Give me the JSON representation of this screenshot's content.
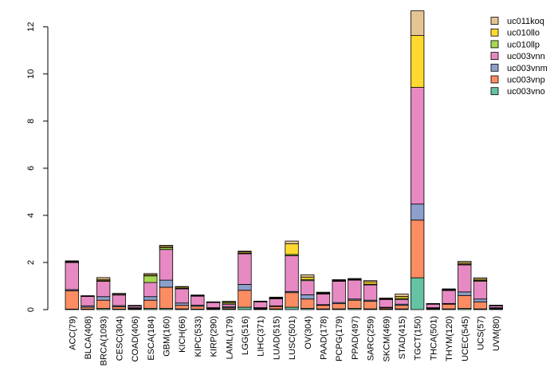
{
  "chart_data": {
    "type": "bar",
    "stacked": true,
    "title": "",
    "xlabel": "",
    "ylabel": "",
    "ylim": [
      0,
      12.7
    ],
    "yticks": [
      0,
      2,
      4,
      6,
      8,
      10,
      12
    ],
    "legend_position": "top-right",
    "categories": [
      "ACC(79)",
      "BLCA(408)",
      "BRCA(1093)",
      "CESC(304)",
      "COAD(406)",
      "ESCA(184)",
      "GBM(160)",
      "KICH(66)",
      "KIPC(533)",
      "KIRP(290)",
      "LAML(179)",
      "LGG(516)",
      "LIHC(371)",
      "LUAD(515)",
      "LUSC(501)",
      "OV(304)",
      "PAAD(178)",
      "PCPG(179)",
      "PPAD(497)",
      "SARC(259)",
      "SKCM(469)",
      "STAD(415)",
      "TGCT(150)",
      "THCA(501)",
      "THYM(120)",
      "UCEC(545)",
      "UCS(57)",
      "UVM(80)"
    ],
    "series": [
      {
        "name": "uc003vno",
        "color": "#66c2a5",
        "values": [
          0.02,
          0.02,
          0.05,
          0.02,
          0.02,
          0.05,
          0.05,
          0.03,
          0.02,
          0.02,
          0.03,
          0.1,
          0.02,
          0.03,
          0.1,
          0.05,
          0.03,
          0.03,
          0.05,
          0.03,
          0.02,
          0.03,
          1.35,
          0.02,
          0.03,
          0.05,
          0.03,
          0.02
        ]
      },
      {
        "name": "uc003vnp",
        "color": "#fc8d62",
        "values": [
          0.78,
          0.08,
          0.35,
          0.1,
          0.03,
          0.35,
          0.9,
          0.15,
          0.12,
          0.03,
          0.05,
          0.72,
          0.03,
          0.1,
          0.62,
          0.4,
          0.15,
          0.22,
          0.35,
          0.32,
          0.05,
          0.15,
          2.45,
          0.03,
          0.2,
          0.55,
          0.3,
          0.03
        ]
      },
      {
        "name": "uc003vnm",
        "color": "#8da0cb",
        "values": [
          0.05,
          0.06,
          0.15,
          0.05,
          0.03,
          0.15,
          0.3,
          0.1,
          0.05,
          0.03,
          0.05,
          0.25,
          0.03,
          0.03,
          0.05,
          0.18,
          0.03,
          0.05,
          0.05,
          0.05,
          0.03,
          0.05,
          0.68,
          0.03,
          0.03,
          0.15,
          0.12,
          0.03
        ]
      },
      {
        "name": "uc003vnn",
        "color": "#e78ac3",
        "values": [
          1.15,
          0.4,
          0.65,
          0.45,
          0.07,
          0.6,
          1.3,
          0.6,
          0.38,
          0.22,
          0.1,
          1.3,
          0.25,
          0.3,
          1.52,
          0.6,
          0.45,
          0.9,
          0.8,
          0.65,
          0.33,
          0.2,
          4.95,
          0.15,
          0.55,
          1.15,
          0.75,
          0.08
        ]
      },
      {
        "name": "uc010llp",
        "color": "#a6d854",
        "values": [
          0.02,
          0.01,
          0.03,
          0.01,
          0.01,
          0.28,
          0.08,
          0.02,
          0.01,
          0.01,
          0.05,
          0.03,
          0.01,
          0.02,
          0.05,
          0.05,
          0.02,
          0.02,
          0.02,
          0.03,
          0.01,
          0.05,
          0.0,
          0.01,
          0.02,
          0.03,
          0.04,
          0.01
        ]
      },
      {
        "name": "uc010llo",
        "color": "#ffd92f",
        "values": [
          0.02,
          0.01,
          0.05,
          0.02,
          0.01,
          0.05,
          0.05,
          0.05,
          0.02,
          0.01,
          0.05,
          0.05,
          0.01,
          0.02,
          0.45,
          0.1,
          0.03,
          0.03,
          0.02,
          0.1,
          0.03,
          0.08,
          2.2,
          0.01,
          0.02,
          0.05,
          0.05,
          0.01
        ]
      },
      {
        "name": "uc011koq",
        "color": "#e5c494",
        "values": [
          0.03,
          0.01,
          0.08,
          0.04,
          0.01,
          0.05,
          0.05,
          0.03,
          0.02,
          0.01,
          0.02,
          0.03,
          0.01,
          0.03,
          0.12,
          0.1,
          0.03,
          0.02,
          0.03,
          0.05,
          0.02,
          0.1,
          1.05,
          0.01,
          0.03,
          0.07,
          0.06,
          0.01
        ]
      }
    ]
  }
}
